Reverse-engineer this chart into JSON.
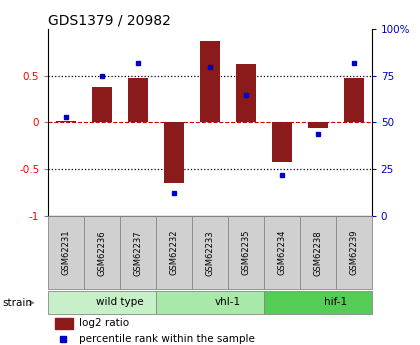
{
  "title": "GDS1379 / 20982",
  "samples": [
    "GSM62231",
    "GSM62236",
    "GSM62237",
    "GSM62232",
    "GSM62233",
    "GSM62235",
    "GSM62234",
    "GSM62238",
    "GSM62239"
  ],
  "log2_ratio": [
    0.02,
    0.38,
    0.48,
    -0.65,
    0.88,
    0.63,
    -0.42,
    -0.06,
    0.48
  ],
  "percentile_rank": [
    53,
    75,
    82,
    12,
    80,
    65,
    22,
    44,
    82
  ],
  "groups": [
    {
      "label": "wild type",
      "start": 0,
      "end": 3,
      "color": "#c8f0c8"
    },
    {
      "label": "vhl-1",
      "start": 3,
      "end": 6,
      "color": "#a8e8a8"
    },
    {
      "label": "hif-1",
      "start": 6,
      "end": 9,
      "color": "#55cc55"
    }
  ],
  "ylim_left": [
    -1,
    1
  ],
  "ylim_right": [
    0,
    100
  ],
  "bar_color": "#8b1a1a",
  "dot_color": "#0000cc",
  "hline_color": "#cc0000",
  "dotline_color": "#000000",
  "bg_color": "#ffffff",
  "right_axis_color": "#0000cc",
  "left_yticks": [
    -1,
    -0.5,
    0,
    0.5
  ],
  "left_yticklabels": [
    "-1",
    "-0.5",
    "0",
    "0.5"
  ],
  "right_yticks": [
    0,
    25,
    50,
    75,
    100
  ],
  "right_yticklabels": [
    "0",
    "25",
    "50",
    "75",
    "100%"
  ],
  "sample_box_color": "#d0d0d0",
  "bar_width": 0.55
}
